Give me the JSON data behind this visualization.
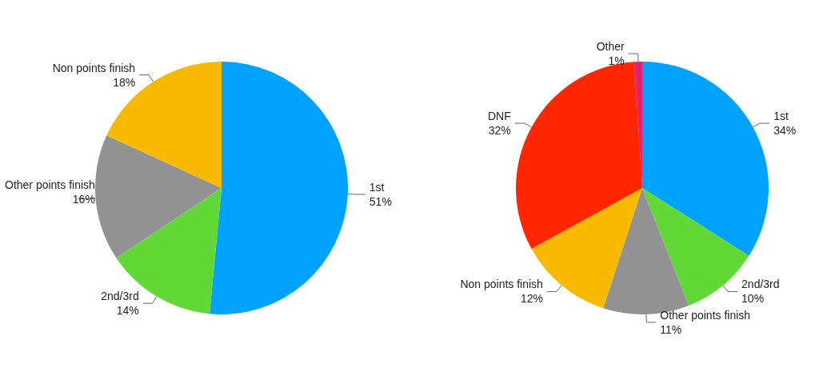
{
  "chart_data": [
    {
      "type": "pie",
      "categories": [
        "1st",
        "2nd/3rd",
        "Other points finish",
        "Non points finish"
      ],
      "values": [
        51,
        14,
        16,
        18
      ],
      "value_labels": [
        "51%",
        "14%",
        "16%",
        "18%"
      ],
      "colors": [
        "#00a2ff",
        "#61d836",
        "#929292",
        "#f8ba00"
      ]
    },
    {
      "type": "pie",
      "categories": [
        "1st",
        "2nd/3rd",
        "Other points finish",
        "Non points finish",
        "DNF",
        "Other"
      ],
      "values": [
        34,
        10,
        11,
        12,
        32,
        1
      ],
      "value_labels": [
        "34%",
        "10%",
        "11%",
        "12%",
        "32%",
        "1%"
      ],
      "colors": [
        "#00a2ff",
        "#61d836",
        "#929292",
        "#f8ba00",
        "#ff2600",
        "#e22075"
      ]
    }
  ]
}
